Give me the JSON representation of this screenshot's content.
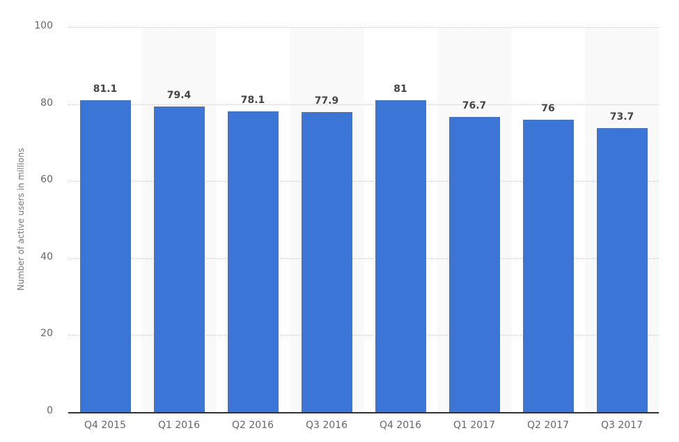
{
  "chart_data": {
    "type": "bar",
    "title": "",
    "xlabel": "",
    "ylabel": "Number of active users in millions",
    "categories": [
      "Q4 2015",
      "Q1 2016",
      "Q2 2016",
      "Q3 2016",
      "Q4 2016",
      "Q1 2017",
      "Q2 2017",
      "Q3 2017"
    ],
    "values": [
      81.1,
      79.4,
      78.1,
      77.9,
      81,
      76.7,
      76,
      73.7
    ],
    "value_labels": [
      "81.1",
      "79.4",
      "78.1",
      "77.9",
      "81",
      "76.7",
      "76",
      "73.7"
    ],
    "ylim": [
      0,
      100
    ],
    "yticks": [
      0,
      20,
      40,
      60,
      80,
      100
    ],
    "grid": true,
    "legend": "none",
    "colors": {
      "bar": "#3b75d6",
      "band": "#f9f9f9"
    }
  }
}
